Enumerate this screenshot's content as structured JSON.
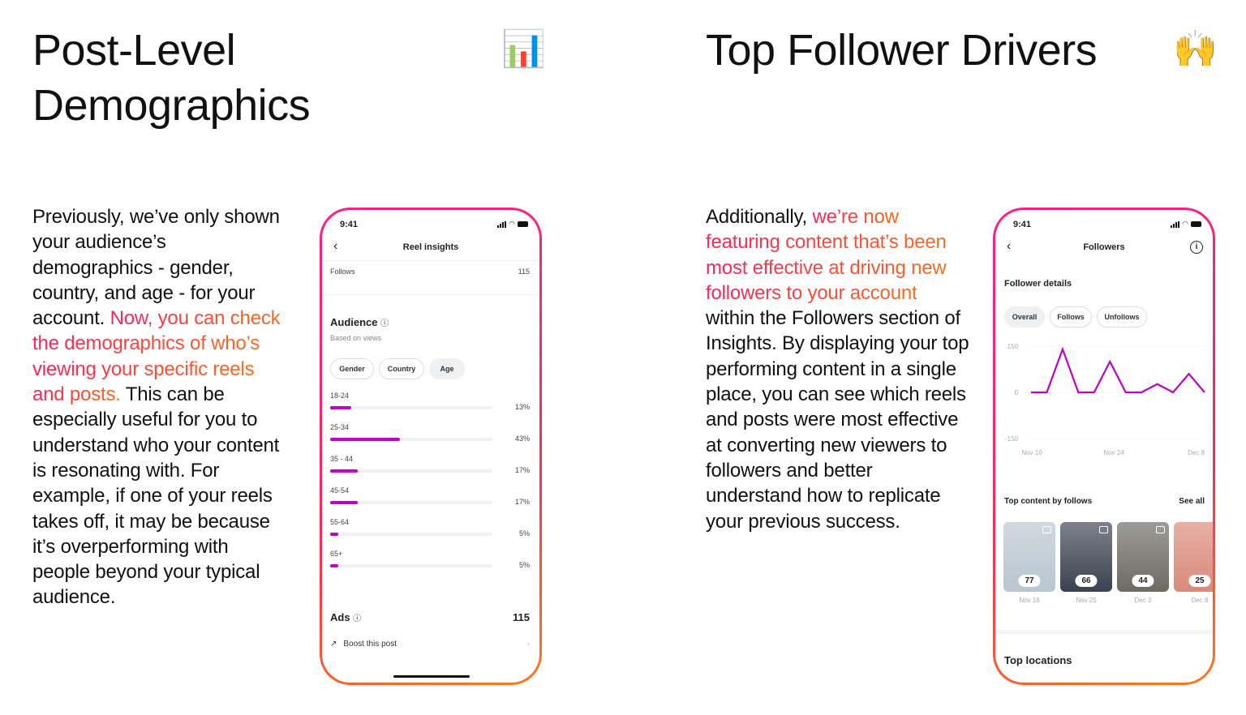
{
  "left": {
    "title_line1": "Post-Level",
    "title_line2": "Demographics",
    "emoji": "📊",
    "para_before": "Previously, we’ve only shown your audience’s demographics - gender, country, and age - for your account. ",
    "para_highlight": "Now, you can check the demographics of who’s viewing your specific reels and posts.",
    "para_after": " This can be especially useful for you to understand who your content is resonating with. For example, if one of your reels takes off, it may be because it’s overperforming with people beyond your typical audience."
  },
  "right": {
    "title": "Top Follower Drivers",
    "emoji": "🙌",
    "para_before": "Additionally, ",
    "para_highlight": "we’re now featuring content that’s been most effective at driving new followers to your account",
    "para_after": " within the Followers section of Insights. By displaying your top performing content in a single place, you can see which reels and posts were most effective at converting new viewers to followers and better understand how to replicate your previous success."
  },
  "phone1": {
    "time": "9:41",
    "title": "Reel insights",
    "follows_label": "Follows",
    "follows_value": "115",
    "audience_title": "Audience",
    "audience_sub": "Based on views",
    "tabs": [
      {
        "label": "Gender"
      },
      {
        "label": "Country"
      },
      {
        "label": "Age",
        "selected": true
      }
    ],
    "ages": [
      {
        "label": "18-24",
        "value": 13,
        "text": "13%"
      },
      {
        "label": "25-34",
        "value": 43,
        "text": "43%"
      },
      {
        "label": "35 - 44",
        "value": 17,
        "text": "17%"
      },
      {
        "label": "45-54",
        "value": 17,
        "text": "17%"
      },
      {
        "label": "55-64",
        "value": 5,
        "text": "5%"
      },
      {
        "label": "65+",
        "value": 5,
        "text": "5%"
      }
    ],
    "ads_label": "Ads",
    "ads_value": "115",
    "boost_label": "Boost this post",
    "accent": "#c000c8"
  },
  "phone2": {
    "time": "9:41",
    "title": "Followers",
    "section": "Follower details",
    "tabs": [
      {
        "label": "Overall",
        "selected": true
      },
      {
        "label": "Follows"
      },
      {
        "label": "Unfollows"
      }
    ],
    "top_content_title": "Top content by follows",
    "see_all": "See all",
    "thumbs": [
      {
        "count": "77",
        "date": "Nov 16",
        "color": "#b9c6cf"
      },
      {
        "count": "66",
        "date": "Nov 25",
        "color": "#3c4250"
      },
      {
        "count": "44",
        "date": "Dec 3",
        "color": "#6d6a63"
      },
      {
        "count": "25",
        "date": "Dec 8",
        "color": "#d98a7a"
      }
    ],
    "top_locations": "Top locations"
  },
  "chart_data": {
    "type": "line",
    "x_ticks": [
      "Nov 10",
      "Nov 24",
      "Dec 8"
    ],
    "y_ticks": [
      "150",
      "0",
      "-150"
    ],
    "ylim": [
      -150,
      150
    ],
    "values": [
      0,
      0,
      140,
      0,
      0,
      100,
      0,
      0,
      27,
      0,
      60,
      0
    ],
    "color": "#c000c8",
    "grid": true
  }
}
